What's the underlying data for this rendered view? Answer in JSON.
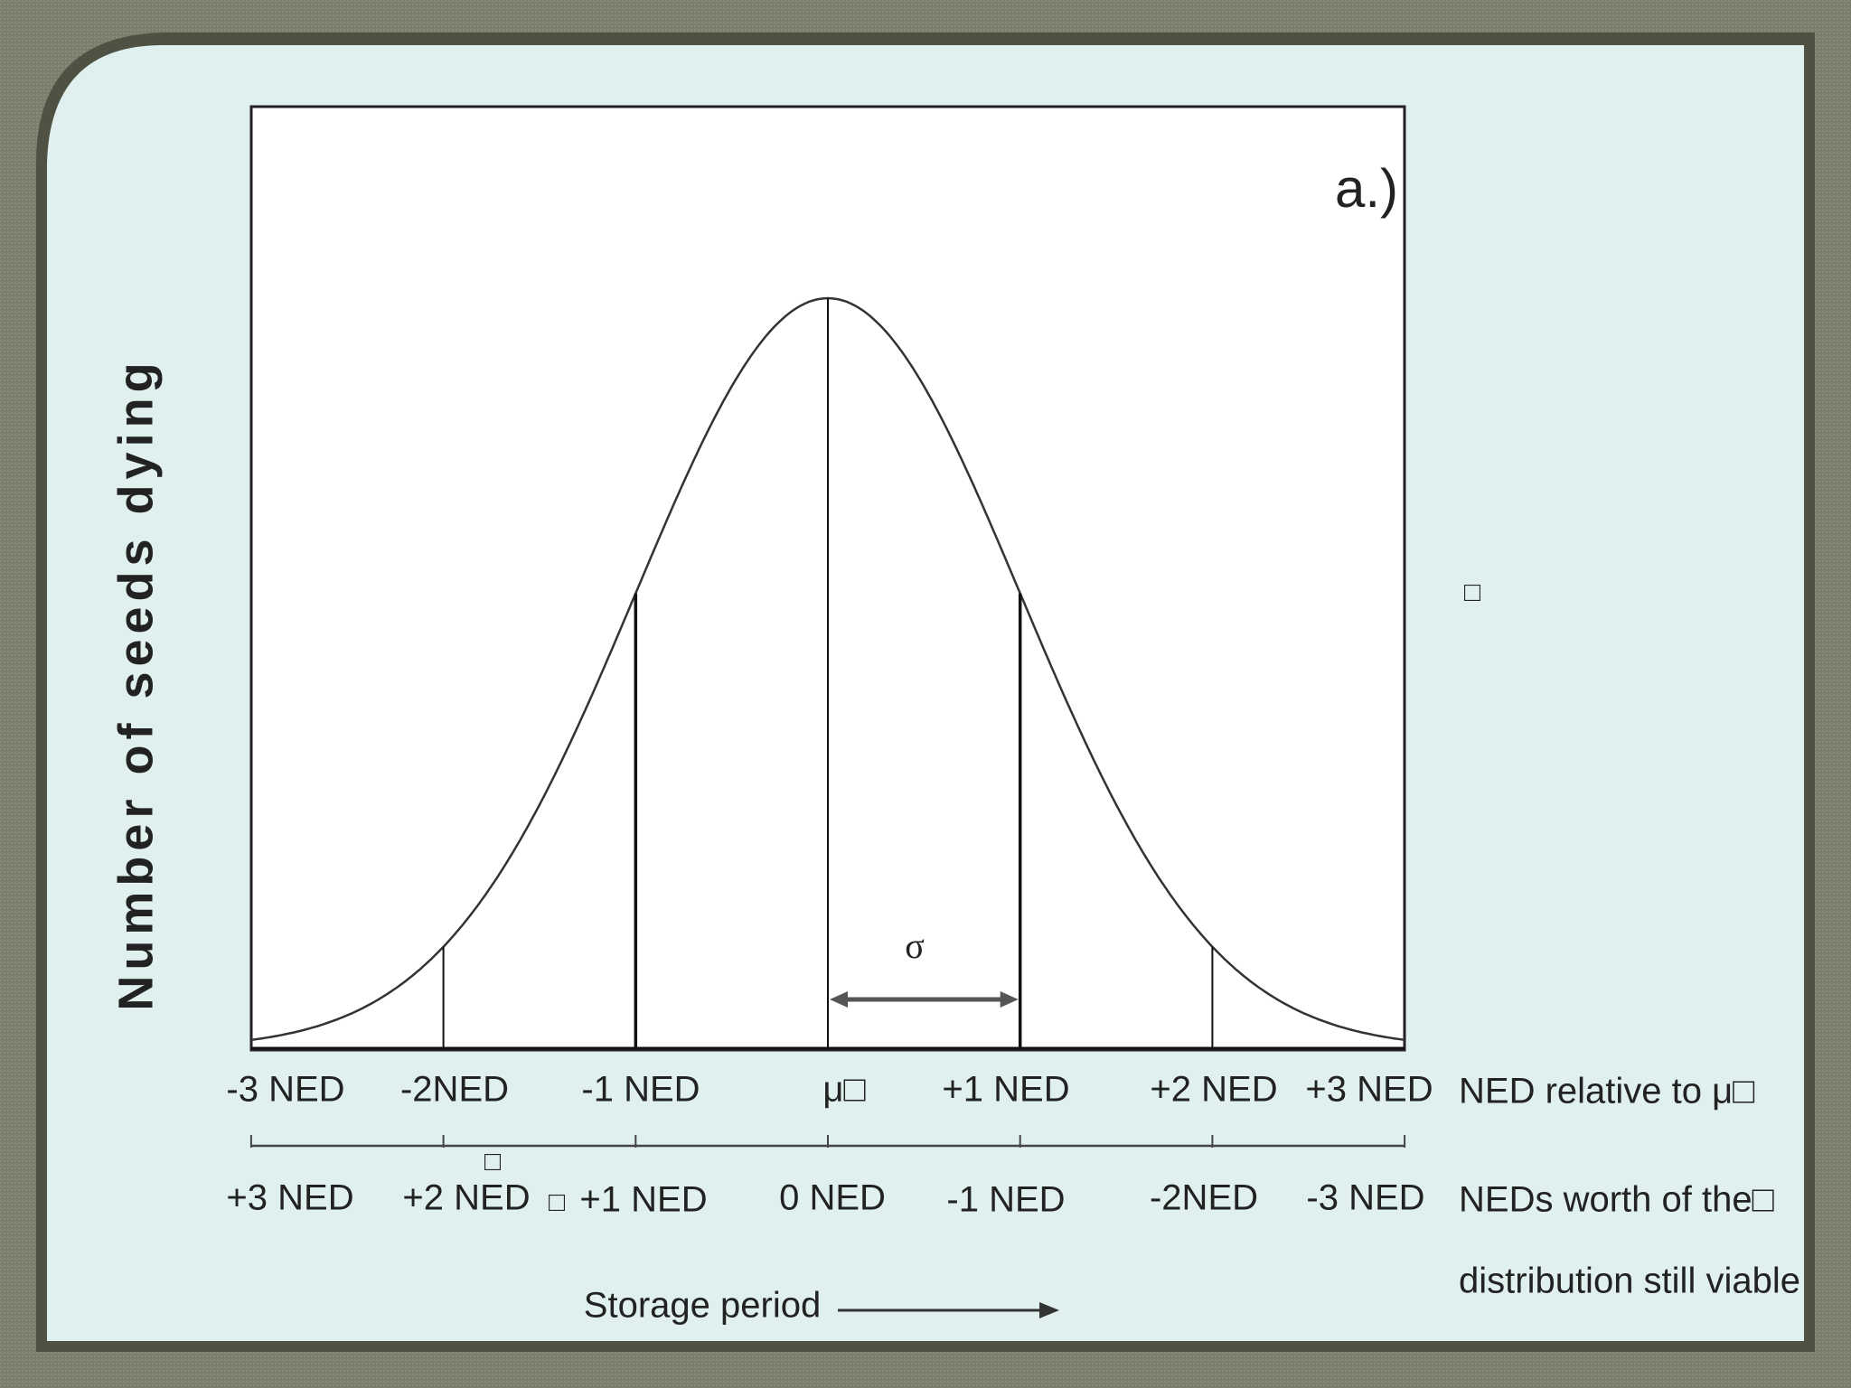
{
  "panel_label": "a.)",
  "y_axis_label": "Number of seeds dying",
  "sigma_label": "σ",
  "top_row": {
    "labels": [
      "-3 NED",
      "-2NED",
      "-1 NED",
      "μ□",
      "+1 NED",
      "+2 NED",
      "+3 NED"
    ],
    "caption": "NED relative to μ□"
  },
  "bottom_row": {
    "labels": [
      "+3 NED",
      "+2 NED",
      "+1 NED",
      "0 NED",
      "-1 NED",
      "-2NED",
      "-3 NED"
    ],
    "caption": [
      "NEDs worth of the□",
      "distribution still viable"
    ]
  },
  "x_axis_label": "Storage period",
  "stray_marks": [
    "□",
    "□",
    "□"
  ]
}
